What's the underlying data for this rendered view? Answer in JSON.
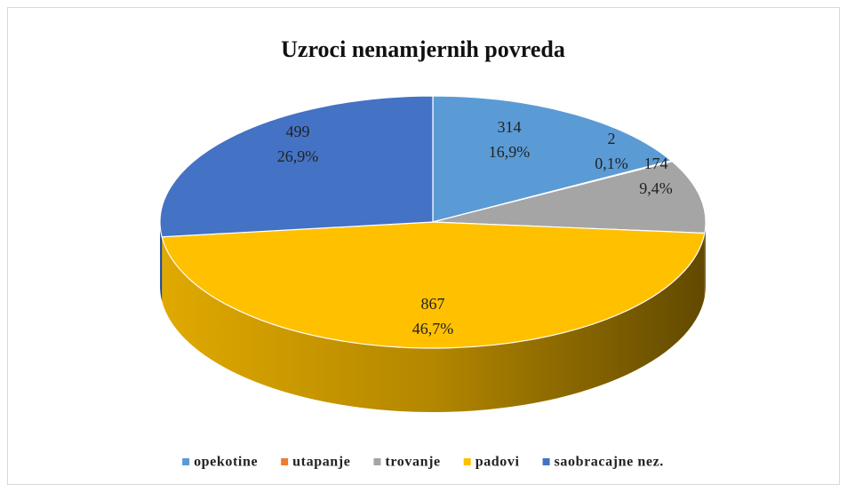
{
  "chart_data": {
    "type": "pie",
    "title": "Uzroci nenamjernih povreda",
    "categories": [
      "opekotine",
      "utapanje",
      "trovanje",
      "padovi",
      "saobracajne nez."
    ],
    "values": [
      314,
      2,
      174,
      867,
      499
    ],
    "value_labels": [
      "16,9%",
      "0,1%",
      "9,4%",
      "46,7%",
      "26,9%"
    ],
    "colors": [
      "#5b9bd5",
      "#ed7d31",
      "#a5a5a5",
      "#ffc000",
      "#4472c4"
    ],
    "legend": "bottom"
  }
}
